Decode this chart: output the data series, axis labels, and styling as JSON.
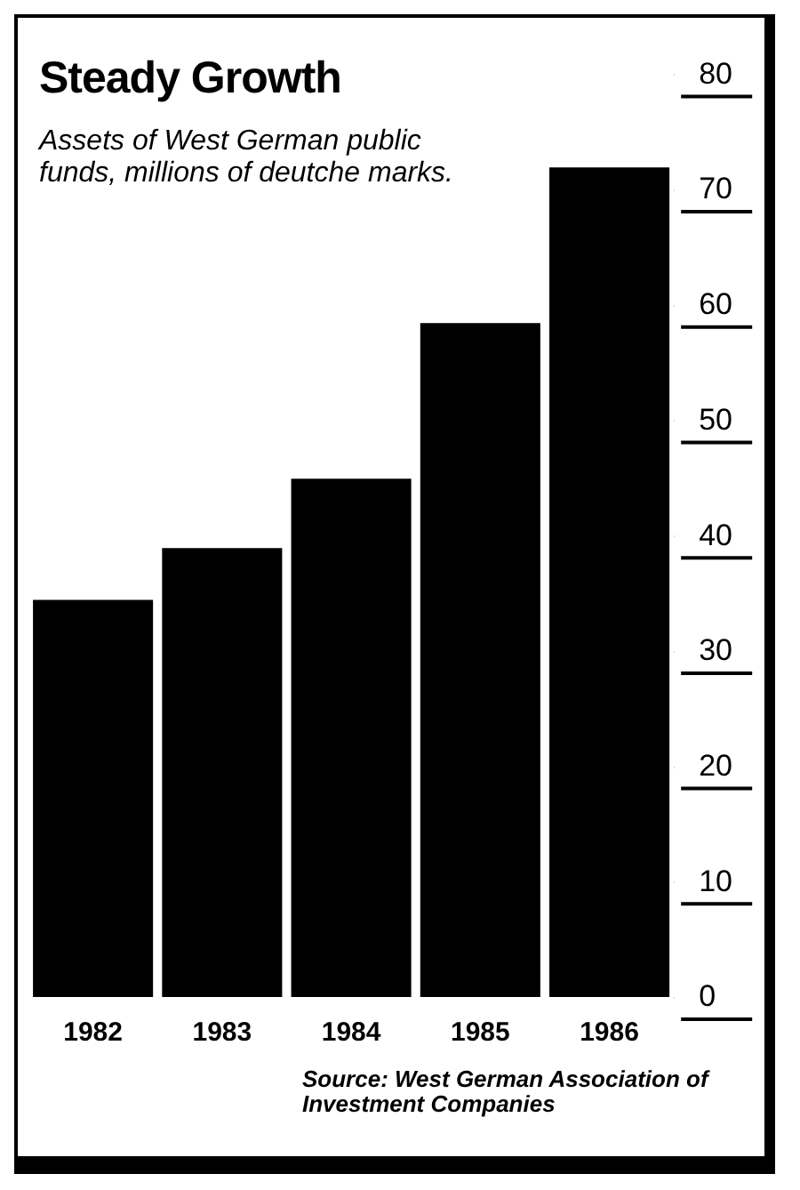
{
  "chart_data": {
    "type": "bar",
    "title": "Steady Growth",
    "subtitle": "Assets of West German public funds, millions of deutche marks.",
    "categories": [
      "1982",
      "1983",
      "1984",
      "1985",
      "1986"
    ],
    "values": [
      34.5,
      39,
      45,
      58.5,
      72
    ],
    "color": "#000000",
    "ylim": [
      0,
      80
    ],
    "yticks": [
      0,
      10,
      20,
      30,
      40,
      50,
      60,
      70,
      80
    ],
    "grid": false,
    "legend": false,
    "annotations": [
      "Source: West German Association of Investment Companies"
    ]
  }
}
